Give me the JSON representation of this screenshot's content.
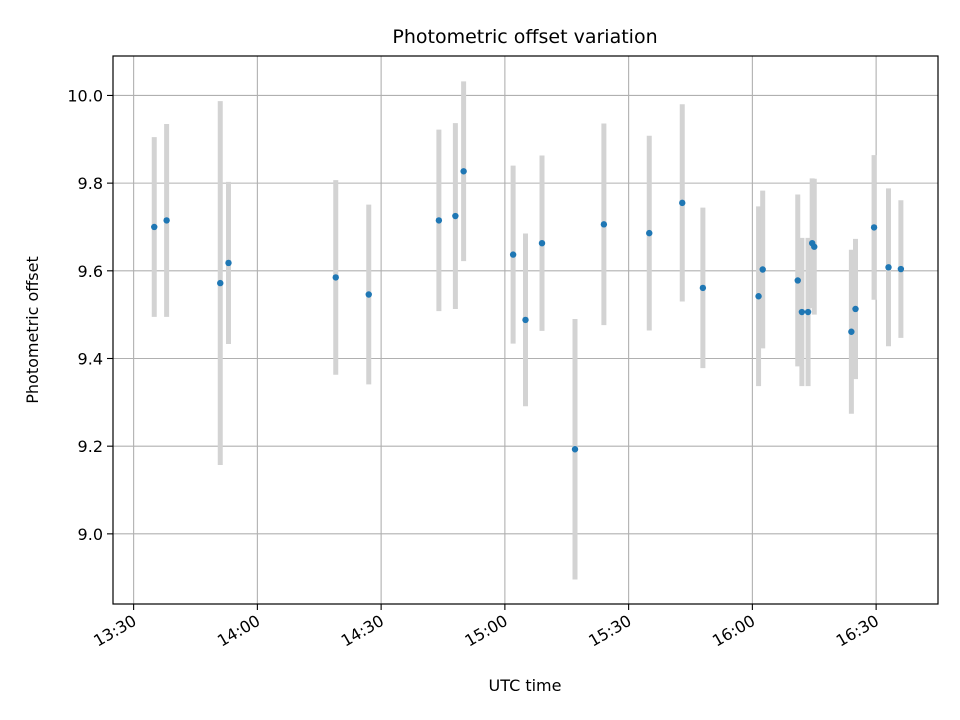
{
  "chart_data": {
    "type": "scatter",
    "title": "Photometric offset variation",
    "xlabel": "UTC time",
    "ylabel": "Photometric offset",
    "x_axis_type": "time",
    "xlim": [
      "13:25",
      "16:45"
    ],
    "ylim": [
      8.84,
      10.09
    ],
    "x_ticks": [
      "13:30",
      "14:00",
      "14:30",
      "15:00",
      "15:30",
      "16:00",
      "16:30"
    ],
    "y_ticks": [
      9.0,
      9.2,
      9.4,
      9.6,
      9.8,
      10.0
    ],
    "y_tick_labels": [
      "9.0",
      "9.2",
      "9.4",
      "9.6",
      "9.8",
      "10.0"
    ],
    "grid": true,
    "point_color": "#1f77b4",
    "errorbar_color": "#d3d3d3",
    "points": [
      {
        "t": "13:35",
        "y": 9.7,
        "err": 0.205
      },
      {
        "t": "13:38",
        "y": 9.715,
        "err": 0.22
      },
      {
        "t": "13:51",
        "y": 9.572,
        "err": 0.415
      },
      {
        "t": "13:53",
        "y": 9.618,
        "err": 0.185
      },
      {
        "t": "14:19",
        "y": 9.585,
        "err": 0.222
      },
      {
        "t": "14:27",
        "y": 9.546,
        "err": 0.205
      },
      {
        "t": "14:44",
        "y": 9.715,
        "err": 0.207
      },
      {
        "t": "14:48",
        "y": 9.725,
        "err": 0.212
      },
      {
        "t": "14:50",
        "y": 9.827,
        "err": 0.205
      },
      {
        "t": "15:02",
        "y": 9.637,
        "err": 0.203
      },
      {
        "t": "15:05",
        "y": 9.488,
        "err": 0.197
      },
      {
        "t": "15:09",
        "y": 9.663,
        "err": 0.2
      },
      {
        "t": "15:17",
        "y": 9.193,
        "err": 0.297
      },
      {
        "t": "15:24",
        "y": 9.706,
        "err": 0.23
      },
      {
        "t": "15:35",
        "y": 9.686,
        "err": 0.222
      },
      {
        "t": "15:43",
        "y": 9.755,
        "err": 0.225
      },
      {
        "t": "15:48",
        "y": 9.561,
        "err": 0.183
      },
      {
        "t": "16:01.5",
        "y": 9.542,
        "err": 0.205
      },
      {
        "t": "16:02.5",
        "y": 9.603,
        "err": 0.18
      },
      {
        "t": "16:11",
        "y": 9.578,
        "err": 0.196
      },
      {
        "t": "16:12",
        "y": 9.506,
        "err": 0.169
      },
      {
        "t": "16:13.5",
        "y": 9.506,
        "err": 0.169
      },
      {
        "t": "16:14.5",
        "y": 9.663,
        "err": 0.148
      },
      {
        "t": "16:15",
        "y": 9.655,
        "err": 0.155
      },
      {
        "t": "16:24",
        "y": 9.461,
        "err": 0.187
      },
      {
        "t": "16:25",
        "y": 9.513,
        "err": 0.16
      },
      {
        "t": "16:29.5",
        "y": 9.699,
        "err": 0.165
      },
      {
        "t": "16:33",
        "y": 9.608,
        "err": 0.18
      },
      {
        "t": "16:36",
        "y": 9.604,
        "err": 0.157
      }
    ]
  }
}
